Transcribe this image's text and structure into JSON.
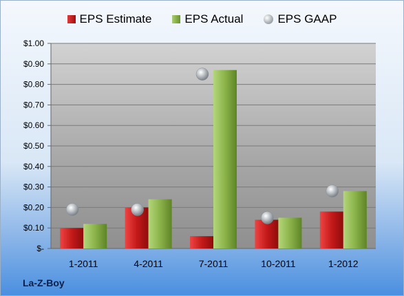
{
  "company": "La-Z-Boy",
  "colors": {
    "estimate": "#c41a1a",
    "actual": "#8bb34a",
    "gaap": "#b8bdc2"
  },
  "chart_data": {
    "type": "bar",
    "categories": [
      "1-2011",
      "4-2011",
      "7-2011",
      "10-2011",
      "1-2012"
    ],
    "series": [
      {
        "name": "EPS Estimate",
        "type": "bar",
        "values": [
          0.1,
          0.2,
          0.06,
          0.14,
          0.18
        ]
      },
      {
        "name": "EPS Actual",
        "type": "bar",
        "values": [
          0.12,
          0.24,
          0.87,
          0.15,
          0.28
        ]
      },
      {
        "name": "EPS GAAP",
        "type": "scatter",
        "values": [
          0.19,
          0.19,
          0.85,
          0.15,
          0.28
        ]
      }
    ],
    "ylim": [
      0,
      1.0
    ],
    "yticks": [
      0,
      0.1,
      0.2,
      0.3,
      0.4,
      0.5,
      0.6,
      0.7,
      0.8,
      0.9,
      1.0
    ],
    "ytick_labels": [
      "$-",
      "$0.10",
      "$0.20",
      "$0.30",
      "$0.40",
      "$0.50",
      "$0.60",
      "$0.70",
      "$0.80",
      "$0.90",
      "$1.00"
    ],
    "grid": true,
    "legend_position": "top"
  }
}
